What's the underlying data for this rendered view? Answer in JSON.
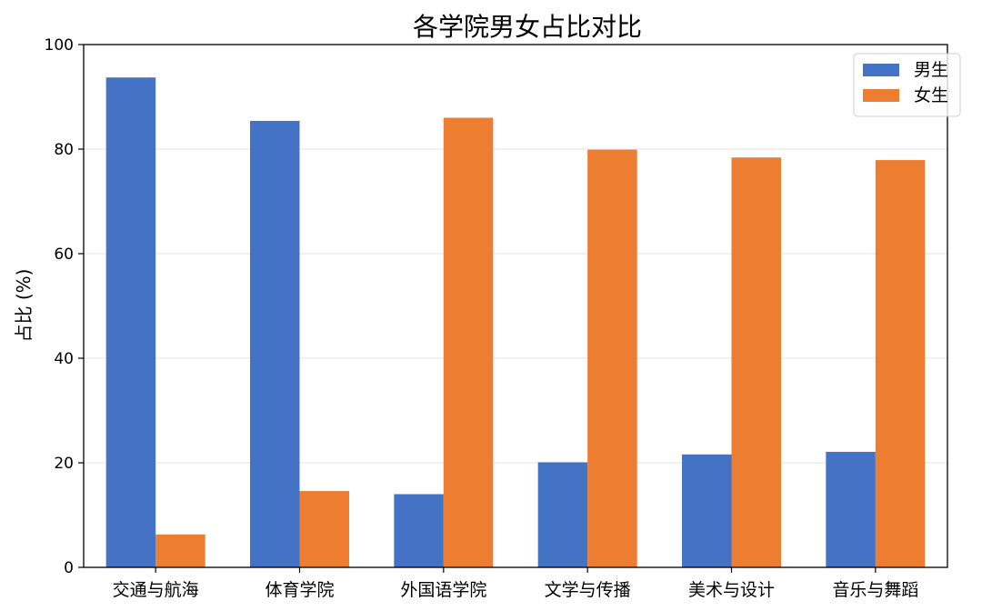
{
  "chart_data": {
    "type": "bar",
    "title": "各学院男女占比对比",
    "xlabel": "",
    "ylabel": "占比 (%)",
    "ylim": [
      0,
      100
    ],
    "yticks": [
      0,
      20,
      40,
      60,
      80,
      100
    ],
    "grid": "y",
    "legend_position": "top-right",
    "categories": [
      "交通与航海",
      "体育学院",
      "外国语学院",
      "文学与传播",
      "美术与设计",
      "音乐与舞蹈"
    ],
    "series": [
      {
        "name": "男生",
        "color": "#4472c4",
        "values": [
          93.7,
          85.4,
          14.0,
          20.1,
          21.6,
          22.1
        ]
      },
      {
        "name": "女生",
        "color": "#ed7d31",
        "values": [
          6.3,
          14.6,
          86.0,
          79.9,
          78.4,
          77.9
        ]
      }
    ]
  }
}
